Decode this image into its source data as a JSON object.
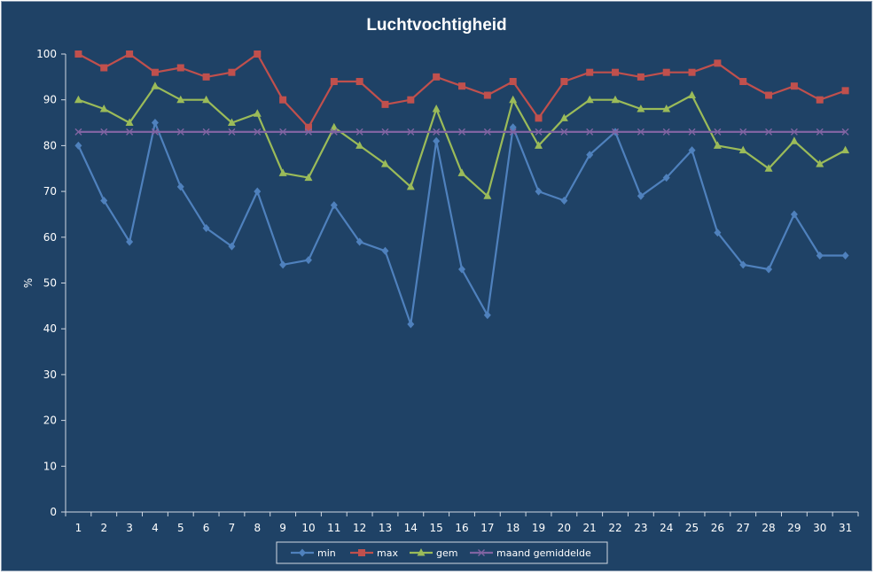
{
  "chart_data": {
    "type": "line",
    "title": "Luchtvochtigheid",
    "xlabel": "",
    "ylabel": "%",
    "ylim": [
      0,
      100
    ],
    "yticks": [
      0,
      10,
      20,
      30,
      40,
      50,
      60,
      70,
      80,
      90,
      100
    ],
    "grid": false,
    "legend_position": "bottom",
    "categories": [
      "1",
      "2",
      "3",
      "4",
      "5",
      "6",
      "7",
      "8",
      "9",
      "10",
      "11",
      "12",
      "13",
      "14",
      "15",
      "16",
      "17",
      "18",
      "19",
      "20",
      "21",
      "22",
      "23",
      "24",
      "25",
      "26",
      "27",
      "28",
      "29",
      "30",
      "31"
    ],
    "series": [
      {
        "name": "min",
        "color": "#4f81bd",
        "marker": "diamond",
        "values": [
          80,
          68,
          59,
          85,
          71,
          62,
          58,
          70,
          54,
          55,
          67,
          59,
          57,
          41,
          81,
          53,
          43,
          84,
          70,
          68,
          78,
          83,
          69,
          73,
          79,
          61,
          54,
          53,
          65,
          56,
          56
        ]
      },
      {
        "name": "max",
        "color": "#c0504d",
        "marker": "square",
        "values": [
          100,
          97,
          100,
          96,
          97,
          95,
          96,
          100,
          90,
          84,
          94,
          94,
          89,
          90,
          95,
          93,
          91,
          94,
          86,
          94,
          96,
          96,
          95,
          96,
          96,
          98,
          94,
          91,
          93,
          90,
          92
        ]
      },
      {
        "name": "gem",
        "color": "#9bbb59",
        "marker": "triangle",
        "values": [
          90,
          88,
          85,
          93,
          90,
          90,
          85,
          87,
          74,
          73,
          84,
          80,
          76,
          71,
          88,
          74,
          69,
          90,
          80,
          86,
          90,
          90,
          88,
          88,
          91,
          80,
          79,
          75,
          81,
          76,
          79
        ]
      },
      {
        "name": "maand gemiddelde",
        "color": "#8064a2",
        "marker": "x",
        "values": [
          83,
          83,
          83,
          83,
          83,
          83,
          83,
          83,
          83,
          83,
          83,
          83,
          83,
          83,
          83,
          83,
          83,
          83,
          83,
          83,
          83,
          83,
          83,
          83,
          83,
          83,
          83,
          83,
          83,
          83,
          83
        ]
      }
    ]
  }
}
